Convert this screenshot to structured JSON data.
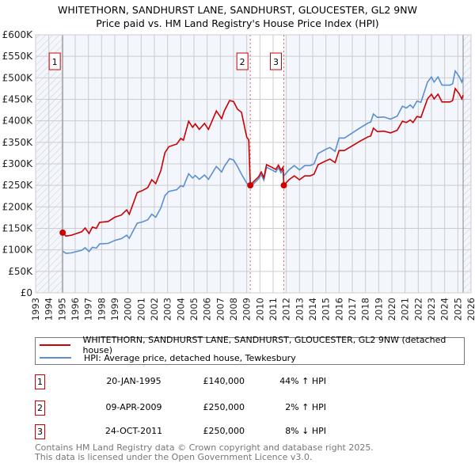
{
  "title_line1": "WHITETHORN, SANDHURST LANE, SANDHURST, GLOUCESTER, GL2 9NW",
  "title_line2": "Price paid vs. HM Land Registry's House Price Index (HPI)",
  "chart_data": {
    "type": "line",
    "xlim": [
      1993,
      2026
    ],
    "ylim": [
      0,
      600000
    ],
    "x_ticks": [
      "1993",
      "1994",
      "1995",
      "1996",
      "1997",
      "1998",
      "1999",
      "2000",
      "2001",
      "2002",
      "2003",
      "2004",
      "2005",
      "2006",
      "2007",
      "2008",
      "2009",
      "2010",
      "2011",
      "2012",
      "2013",
      "2014",
      "2015",
      "2016",
      "2017",
      "2018",
      "2019",
      "2020",
      "2021",
      "2022",
      "2023",
      "2024",
      "2025",
      "2026"
    ],
    "y_ticks": [
      {
        "v": 0,
        "label": "£0"
      },
      {
        "v": 50000,
        "label": "£50K"
      },
      {
        "v": 100000,
        "label": "£100K"
      },
      {
        "v": 150000,
        "label": "£150K"
      },
      {
        "v": 200000,
        "label": "£200K"
      },
      {
        "v": 250000,
        "label": "£250K"
      },
      {
        "v": 300000,
        "label": "£300K"
      },
      {
        "v": 350000,
        "label": "£350K"
      },
      {
        "v": 400000,
        "label": "£400K"
      },
      {
        "v": 450000,
        "label": "£450K"
      },
      {
        "v": 500000,
        "label": "£500K"
      },
      {
        "v": 550000,
        "label": "£550K"
      },
      {
        "v": 600000,
        "label": "£600K"
      }
    ],
    "grid": true,
    "data_range": [
      1995.05,
      2025.4
    ],
    "series": [
      {
        "name": "WHITETHORN, SANDHURST LANE, SANDHURST, GLOUCESTER, GL2 9NW (detached house)",
        "color": "#cc0000",
        "x": [
          1995.05,
          1995.3,
          1995.7,
          1996.5,
          1996.75,
          1997.05,
          1997.3,
          1997.6,
          1997.85,
          1998.5,
          1999.0,
          1999.5,
          1999.9,
          2000.1,
          2000.7,
          2001.1,
          2001.5,
          2001.8,
          2002.1,
          2002.5,
          2002.8,
          2003.1,
          2003.7,
          2004.0,
          2004.2,
          2004.6,
          2004.9,
          2005.1,
          2005.4,
          2005.8,
          2006.1,
          2006.7,
          2007.1,
          2007.3,
          2007.7,
          2008.0,
          2008.3,
          2008.6,
          2009.0,
          2009.15,
          2009.27,
          2009.5,
          2009.9,
          2010.1,
          2010.3,
          2010.5,
          2010.9,
          2011.2,
          2011.4,
          2011.6,
          2011.75,
          2011.81,
          2012.2,
          2012.6,
          2013.0,
          2013.4,
          2013.8,
          2014.1,
          2014.4,
          2015.0,
          2015.3,
          2015.7,
          2016.0,
          2016.4,
          2017.0,
          2017.6,
          2018.2,
          2018.4,
          2018.6,
          2018.9,
          2019.4,
          2019.9,
          2020.4,
          2020.8,
          2021.1,
          2021.4,
          2021.6,
          2021.9,
          2022.2,
          2022.7,
          2023.0,
          2023.2,
          2023.5,
          2023.8,
          2024.4,
          2024.6,
          2024.8,
          2025.1,
          2025.3,
          2025.4
        ],
        "y": [
          140000,
          132000,
          134000,
          142000,
          151000,
          138000,
          153000,
          150000,
          164000,
          166000,
          176000,
          181000,
          193000,
          183000,
          233000,
          238000,
          245000,
          263000,
          254000,
          285000,
          326000,
          340000,
          346000,
          359000,
          355000,
          399000,
          385000,
          393000,
          380000,
          394000,
          380000,
          423000,
          405000,
          423000,
          447000,
          445000,
          427000,
          420000,
          362000,
          356000,
          250000,
          258000,
          270000,
          281000,
          268000,
          298000,
          292000,
          287000,
          297000,
          285000,
          292000,
          250000,
          263000,
          272000,
          263000,
          272000,
          272000,
          276000,
          298000,
          307000,
          311000,
          303000,
          331000,
          331000,
          342000,
          353000,
          363000,
          365000,
          383000,
          375000,
          376000,
          372000,
          378000,
          399000,
          396000,
          402000,
          396000,
          410000,
          408000,
          451000,
          462000,
          451000,
          462000,
          444000,
          444000,
          447000,
          475000,
          463000,
          451000,
          460000
        ]
      },
      {
        "name": "HPI: Average price, detached house, Tewkesbury",
        "color": "#5b8fd0",
        "x": [
          1995.05,
          1995.3,
          1995.7,
          1996.5,
          1996.75,
          1997.05,
          1997.3,
          1997.6,
          1997.85,
          1998.5,
          1999.0,
          1999.5,
          1999.9,
          2000.1,
          2000.7,
          2001.1,
          2001.5,
          2001.8,
          2002.1,
          2002.5,
          2002.8,
          2003.1,
          2003.7,
          2004.0,
          2004.2,
          2004.6,
          2004.9,
          2005.1,
          2005.4,
          2005.8,
          2006.1,
          2006.7,
          2007.1,
          2007.3,
          2007.7,
          2008.0,
          2008.3,
          2008.6,
          2009.0,
          2009.15,
          2009.27,
          2009.5,
          2009.9,
          2010.1,
          2010.3,
          2010.5,
          2010.9,
          2011.2,
          2011.4,
          2011.6,
          2011.75,
          2011.81,
          2012.2,
          2012.6,
          2013.0,
          2013.4,
          2013.8,
          2014.1,
          2014.4,
          2015.0,
          2015.3,
          2015.7,
          2016.0,
          2016.4,
          2017.0,
          2017.6,
          2018.2,
          2018.4,
          2018.6,
          2018.9,
          2019.4,
          2019.9,
          2020.4,
          2020.8,
          2021.1,
          2021.4,
          2021.6,
          2021.9,
          2022.2,
          2022.7,
          2023.0,
          2023.2,
          2023.5,
          2023.8,
          2024.4,
          2024.6,
          2024.8,
          2025.1,
          2025.3,
          2025.4
        ],
        "y": [
          97000,
          92000,
          93000,
          99000,
          105000,
          96000,
          106000,
          104000,
          114000,
          115000,
          122000,
          126000,
          134000,
          127000,
          162000,
          165000,
          170000,
          183000,
          176000,
          198000,
          226000,
          236000,
          240000,
          249000,
          247000,
          277000,
          267000,
          273000,
          264000,
          274000,
          264000,
          294000,
          281000,
          294000,
          312000,
          309000,
          294000,
          276000,
          255000,
          252000,
          245000,
          253000,
          265000,
          275000,
          262000,
          292000,
          286000,
          281000,
          291000,
          279000,
          286000,
          272000,
          286000,
          296000,
          286000,
          296000,
          296000,
          300000,
          324000,
          334000,
          338000,
          329000,
          360000,
          360000,
          372000,
          384000,
          395000,
          397000,
          416000,
          408000,
          409000,
          404000,
          411000,
          434000,
          430000,
          437000,
          430000,
          446000,
          443000,
          490000,
          502000,
          490000,
          502000,
          483000,
          483000,
          486000,
          516000,
          503000,
          490000,
          500000
        ]
      }
    ],
    "sales": [
      {
        "label": "1",
        "x": 1995.05,
        "y": 140000
      },
      {
        "label": "2",
        "x": 2009.27,
        "y": 250000
      },
      {
        "label": "3",
        "x": 2011.81,
        "y": 250000
      }
    ]
  },
  "legend": {
    "property": "WHITETHORN, SANDHURST LANE, SANDHURST, GLOUCESTER, GL2 9NW (detached house)",
    "hpi": "HPI: Average price, detached house, Tewkesbury"
  },
  "transactions": [
    {
      "num": "1",
      "date": "20-JAN-1995",
      "price": "£140,000",
      "hpi": "44% ↑ HPI"
    },
    {
      "num": "2",
      "date": "09-APR-2009",
      "price": "£250,000",
      "hpi": "2% ↑ HPI"
    },
    {
      "num": "3",
      "date": "24-OCT-2011",
      "price": "£250,000",
      "hpi": "8% ↓ HPI"
    }
  ],
  "footer": {
    "line1": "Contains HM Land Registry data © Crown copyright and database right 2025.",
    "line2": "This data is licensed under the Open Government Licence v3.0."
  }
}
